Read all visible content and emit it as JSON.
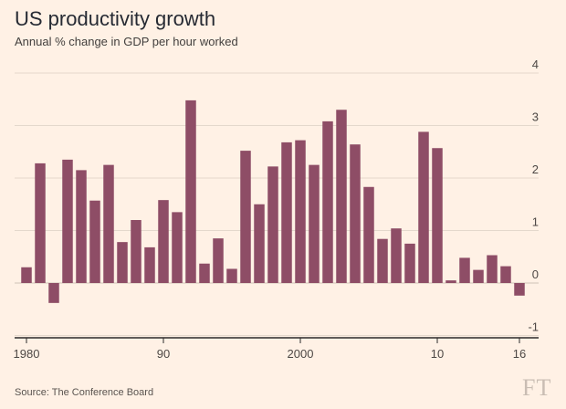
{
  "header": {
    "title": "US productivity growth",
    "subtitle": "Annual % change in GDP per hour worked"
  },
  "footer": {
    "source": "Source: The Conference Board",
    "logo_text": "FT"
  },
  "colors": {
    "bar": "#8e4d66",
    "background": "#fff1e5",
    "gridline": "#e4d8cc",
    "axis": "#2b2b2b"
  },
  "chart_data": {
    "type": "bar",
    "title": "US productivity growth",
    "subtitle": "Annual % change in GDP per hour worked",
    "xlabel": "",
    "ylabel": "",
    "ylim": [
      -1,
      4
    ],
    "y_ticks": [
      4,
      3,
      2,
      1,
      0,
      -1
    ],
    "y_tick_labels": [
      "4",
      "3",
      "2",
      "1",
      "0",
      "-1"
    ],
    "y_axis_side": "right",
    "x_ticks": [
      1980,
      1990,
      2000,
      2010,
      2016
    ],
    "x_tick_labels": [
      "1980",
      "90",
      "2000",
      "10",
      "16"
    ],
    "grid": true,
    "categories": [
      1980,
      1981,
      1982,
      1983,
      1984,
      1985,
      1986,
      1987,
      1988,
      1989,
      1990,
      1991,
      1992,
      1993,
      1994,
      1995,
      1996,
      1997,
      1998,
      1999,
      2000,
      2001,
      2002,
      2003,
      2004,
      2005,
      2006,
      2007,
      2008,
      2009,
      2010,
      2011,
      2012,
      2013,
      2014,
      2015,
      2016
    ],
    "values": [
      0.3,
      2.28,
      -0.38,
      2.35,
      2.15,
      1.57,
      2.25,
      0.78,
      1.2,
      0.68,
      1.58,
      1.35,
      3.48,
      0.37,
      0.85,
      0.27,
      2.52,
      1.5,
      2.22,
      2.68,
      2.72,
      2.25,
      3.08,
      3.3,
      2.64,
      1.83,
      0.84,
      1.04,
      0.75,
      2.88,
      2.57,
      0.05,
      0.48,
      0.25,
      0.53,
      0.32,
      -0.24
    ]
  }
}
